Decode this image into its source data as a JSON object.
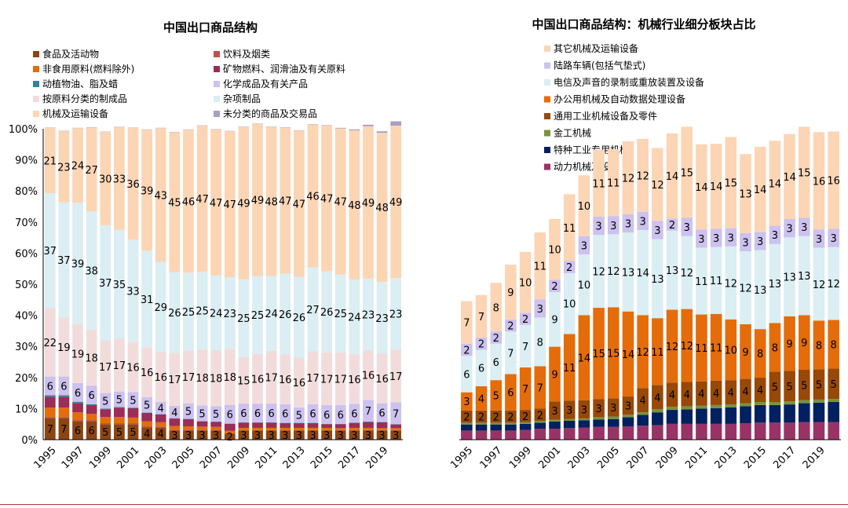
{
  "chart_data": [
    {
      "type": "stacked-bar",
      "title": "中国出口商品结构",
      "x": [
        "1995",
        "1996",
        "1997",
        "1998",
        "1999",
        "2000",
        "2001",
        "2002",
        "2003",
        "2004",
        "2005",
        "2006",
        "2007",
        "2008",
        "2009",
        "2010",
        "2011",
        "2012",
        "2013",
        "2014",
        "2015",
        "2016",
        "2017",
        "2018",
        "2019",
        "2020"
      ],
      "x_tick_labels": [
        "1995",
        "1997",
        "1999",
        "2001",
        "2003",
        "2005",
        "2007",
        "2009",
        "2011",
        "2013",
        "2015",
        "2017",
        "2019"
      ],
      "ylim": [
        0,
        100
      ],
      "y_ticks": [
        "0%",
        "10%",
        "20%",
        "30%",
        "40%",
        "50%",
        "60%",
        "70%",
        "80%",
        "90%",
        "100%"
      ],
      "legend_position": "top",
      "series": [
        {
          "name": "食品及活动物",
          "color": "#8b4513",
          "values": [
            7,
            7,
            6,
            6,
            5,
            5,
            5,
            4,
            4,
            3,
            3,
            3,
            3,
            2,
            3,
            3,
            3,
            3,
            3,
            3,
            3,
            3,
            3,
            3,
            3,
            3
          ],
          "labeled": true
        },
        {
          "name": "饮料及烟类",
          "color": "#c0504d",
          "values": [
            0.3,
            0.3,
            0.3,
            0.3,
            0.3,
            0.3,
            0.3,
            0.3,
            0.2,
            0.2,
            0.2,
            0.2,
            0.2,
            0.1,
            0.1,
            0.1,
            0.1,
            0.1,
            0.1,
            0.1,
            0.1,
            0.1,
            0.1,
            0.1,
            0.1,
            0.1
          ],
          "labeled": false
        },
        {
          "name": "非食用原料(燃料除外)",
          "color": "#e46c0a",
          "values": [
            3,
            3,
            2.5,
            2,
            2,
            2,
            1.8,
            1.6,
            1.4,
            1.2,
            1.1,
            1,
            0.9,
            0.8,
            0.7,
            0.7,
            0.7,
            0.7,
            0.7,
            0.7,
            0.7,
            0.6,
            0.7,
            0.7,
            0.6,
            0.6
          ],
          "labeled": false
        },
        {
          "name": "矿物燃料、润滑油及有关原料",
          "color": "#9b2d57",
          "values": [
            3.5,
            3.5,
            3,
            2.8,
            2.5,
            3,
            3,
            2.7,
            2.5,
            2.4,
            2.3,
            1.7,
            1.6,
            2.2,
            1.7,
            1.7,
            1.7,
            1.5,
            1.5,
            1.5,
            1.2,
            1.3,
            1.6,
            1.9,
            1.9,
            1.2
          ],
          "labeled": false
        },
        {
          "name": "动植物油、脂及蜡",
          "color": "#31849b",
          "values": [
            0.5,
            0.5,
            0.4,
            0.3,
            0.2,
            0.2,
            0.2,
            0.1,
            0.1,
            0.1,
            0.1,
            0.1,
            0.1,
            0.1,
            0.1,
            0.1,
            0.1,
            0.1,
            0.1,
            0.1,
            0.1,
            0.1,
            0.1,
            0.1,
            0.1,
            0.1
          ],
          "labeled": false
        },
        {
          "name": "化学成品及有关产品",
          "color": "#ccc1ef",
          "values": [
            6,
            6,
            6,
            6,
            5,
            5,
            5,
            5,
            4,
            4,
            5,
            5,
            5,
            6,
            6,
            6,
            6,
            6,
            5,
            6,
            6,
            6,
            6,
            7,
            6,
            7
          ],
          "labeled": true
        },
        {
          "name": "按原料分类的制成品",
          "color": "#f2dcdb",
          "values": [
            22,
            19,
            19,
            18,
            17,
            17,
            16,
            16,
            16,
            17,
            17,
            18,
            18,
            18,
            15,
            16,
            17,
            16,
            16,
            17,
            17,
            17,
            16,
            16,
            16,
            17
          ],
          "labeled": true
        },
        {
          "name": "杂项制品",
          "color": "#daeef3",
          "values": [
            37,
            37,
            39,
            38,
            37,
            35,
            33,
            31,
            29,
            26,
            25,
            25,
            24,
            23,
            25,
            25,
            24,
            26,
            26,
            27,
            26,
            25,
            24,
            23,
            23,
            23
          ],
          "labeled": true
        },
        {
          "name": "机械及运输设备",
          "color": "#fcd5b5",
          "values": [
            21,
            23,
            24,
            27,
            30,
            33,
            36,
            39,
            43,
            45,
            46,
            47,
            47,
            47,
            49,
            49,
            48,
            47,
            47,
            46,
            47,
            47,
            48,
            49,
            48,
            49
          ],
          "labeled": true
        },
        {
          "name": "未分类的商品及交易品",
          "color": "#a6a0c4",
          "values": [
            0.1,
            0.1,
            0.1,
            0.1,
            0.1,
            0.1,
            0.1,
            0.1,
            0.1,
            0.1,
            0.1,
            0.1,
            0.1,
            0.1,
            0.1,
            0.1,
            0.1,
            0.1,
            0.1,
            0.1,
            0.1,
            0.2,
            0.3,
            0.5,
            0.5,
            1.4
          ],
          "labeled": false
        }
      ]
    },
    {
      "type": "stacked-bar",
      "title": "中国出口商品结构：机械行业细分板块占比",
      "x": [
        "1995",
        "1996",
        "1997",
        "1998",
        "1999",
        "2000",
        "2001",
        "2002",
        "2003",
        "2004",
        "2005",
        "2006",
        "2007",
        "2008",
        "2009",
        "2010",
        "2011",
        "2012",
        "2013",
        "2014",
        "2015",
        "2016",
        "2017",
        "2018",
        "2019",
        "2020"
      ],
      "x_tick_labels": [
        "1995",
        "1997",
        "1999",
        "2001",
        "2003",
        "2005",
        "2007",
        "2009",
        "2011",
        "2013",
        "2015",
        "2017",
        "2019"
      ],
      "legend_position": "top-left",
      "series": [
        {
          "name": "动力机械及设备",
          "color": "#993366",
          "values": [
            1.5,
            1.5,
            1.5,
            1.5,
            1.6,
            1.8,
            1.8,
            1.9,
            2,
            2.1,
            2.1,
            2.2,
            2.3,
            2.4,
            2.6,
            2.6,
            2.6,
            2.6,
            2.6,
            2.7,
            2.8,
            2.8,
            2.8,
            2.9,
            2.9,
            2.9
          ],
          "labeled": false
        },
        {
          "name": "特种工业专用机械",
          "color": "#002060",
          "values": [
            1,
            1,
            1,
            1,
            1,
            1,
            1.2,
            1.2,
            1.2,
            1.2,
            1.3,
            1.5,
            1.8,
            2.1,
            2.3,
            2.4,
            2.5,
            2.6,
            2.7,
            2.8,
            2.9,
            2.9,
            3,
            3.1,
            3.2,
            3.3
          ],
          "labeled": false
        },
        {
          "name": "金工机械",
          "color": "#77933c",
          "values": [
            0.3,
            0.3,
            0.3,
            0.3,
            0.3,
            0.3,
            0.3,
            0.3,
            0.3,
            0.4,
            0.4,
            0.4,
            0.4,
            0.5,
            0.5,
            0.5,
            0.5,
            0.5,
            0.5,
            0.5,
            0.5,
            0.5,
            0.5,
            0.5,
            0.5,
            0.5
          ],
          "labeled": false
        },
        {
          "name": "通用工业机械设备及零件",
          "color": "#984807",
          "values": [
            2,
            2,
            2,
            2,
            2,
            2,
            3,
            3,
            3,
            3,
            3,
            3,
            4,
            4,
            4,
            4,
            4,
            4,
            4,
            4,
            4,
            5,
            5,
            5,
            5,
            5
          ],
          "labeled": true
        },
        {
          "name": "办公用机械及自动数据处理设备",
          "color": "#e46c0a",
          "values": [
            3,
            4,
            5,
            6,
            7,
            7,
            9,
            11,
            14,
            15,
            15,
            14,
            12,
            11,
            12,
            12,
            11,
            11,
            10,
            9,
            8,
            8,
            9,
            9,
            8,
            8
          ],
          "labeled": true
        },
        {
          "name": "电信及声音的录制或重放装置及设备",
          "color": "#daeef3",
          "values": [
            6,
            6,
            6,
            7,
            7,
            8,
            9,
            10,
            10,
            12,
            12,
            13,
            14,
            13,
            13,
            12,
            11,
            11,
            12,
            12,
            13,
            13,
            13,
            13,
            12,
            12
          ],
          "labeled": true
        },
        {
          "name": "陆路车辆(包括气垫式)",
          "color": "#ccc1ef",
          "values": [
            2,
            2,
            2,
            2,
            2,
            3,
            2,
            2,
            3,
            3,
            3,
            3,
            3,
            3,
            2,
            3,
            3,
            3,
            3,
            3,
            3,
            3,
            3,
            3,
            3,
            3
          ],
          "labeled": true
        },
        {
          "name": "其它机械及运输设备",
          "color": "#fcd5b5",
          "values": [
            7,
            7,
            8,
            9,
            10,
            11,
            10,
            11,
            10,
            11,
            11,
            12,
            12,
            12,
            14,
            15,
            14,
            14,
            15,
            13,
            14,
            14,
            14,
            15,
            16,
            16
          ],
          "labeled": true
        }
      ]
    }
  ]
}
